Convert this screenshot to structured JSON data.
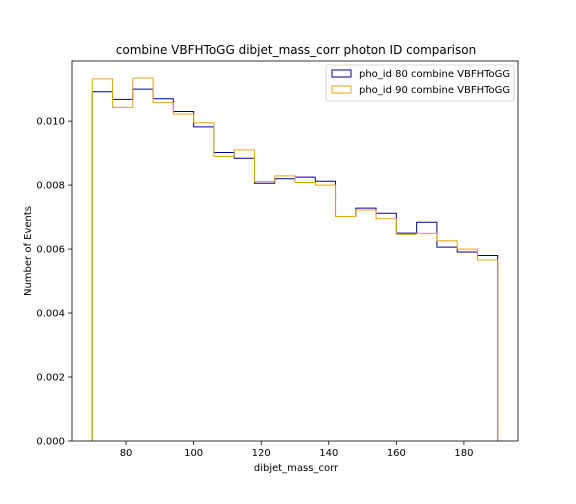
{
  "chart_data": {
    "type": "step-histogram",
    "title": "combine VBFHToGG dibjet_mass_corr photon ID comparison",
    "xlabel": "dibjet_mass_corr",
    "ylabel": "Number of Events",
    "xlim": [
      64,
      196
    ],
    "ylim": [
      0,
      0.01188
    ],
    "xticks": [
      80,
      100,
      120,
      140,
      160,
      180
    ],
    "xtick_labels": [
      "80",
      "100",
      "120",
      "140",
      "160",
      "180"
    ],
    "yticks": [
      0.0,
      0.002,
      0.004,
      0.006,
      0.008,
      0.01
    ],
    "ytick_labels": [
      "0.000",
      "0.002",
      "0.004",
      "0.006",
      "0.008",
      "0.010"
    ],
    "bin_edges": [
      70,
      76,
      82,
      88,
      94,
      100,
      106,
      112,
      118,
      124,
      130,
      136,
      142,
      148,
      154,
      160,
      166,
      172,
      178,
      184,
      190
    ],
    "legend_position": "top-right",
    "grid": false,
    "series": [
      {
        "name": "pho_id 80 combine VBFHToGG",
        "color": "#00008b",
        "values": [
          0.01092,
          0.01068,
          0.011,
          0.0107,
          0.0103,
          0.00982,
          0.00902,
          0.00884,
          0.00806,
          0.0082,
          0.00825,
          0.00812,
          0.00702,
          0.00728,
          0.00712,
          0.0065,
          0.00684,
          0.00606,
          0.00591,
          0.0058
        ]
      },
      {
        "name": "pho_id 90 combine VBFHToGG",
        "color": "#e8a317",
        "values": [
          0.01132,
          0.01043,
          0.01135,
          0.01058,
          0.01022,
          0.00995,
          0.0089,
          0.0091,
          0.00811,
          0.00829,
          0.00808,
          0.008,
          0.00702,
          0.00722,
          0.00695,
          0.00646,
          0.00649,
          0.00626,
          0.006,
          0.00566
        ]
      }
    ]
  }
}
